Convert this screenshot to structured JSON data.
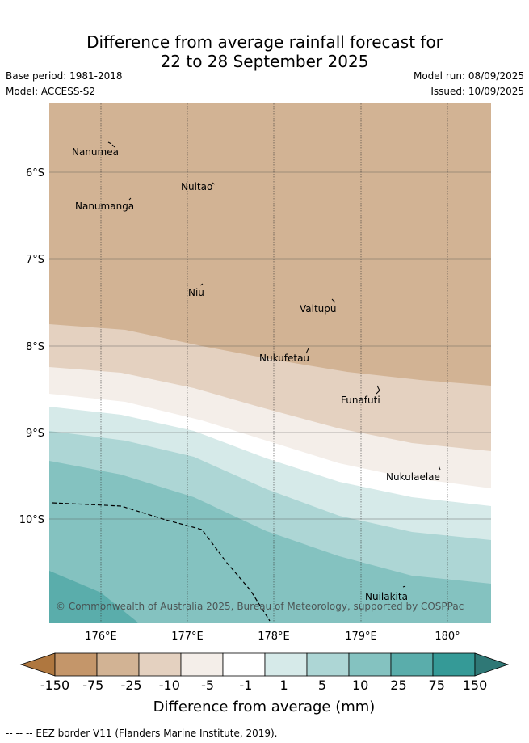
{
  "title_line1": "Difference from average rainfall forecast for",
  "title_line2": "22 to 28 September 2025",
  "base_period": "Base period: 1981-2018",
  "model": "Model: ACCESS-S2",
  "model_run": "Model run: 08/09/2025",
  "issued": "Issued: 10/09/2025",
  "copyright": "© Commonwealth of Australia 2025, Bureau of Meteorology, supported by COSPPac",
  "lat_labels": [
    "6°S",
    "7°S",
    "8°S",
    "9°S",
    "10°S"
  ],
  "lon_labels": [
    "176°E",
    "177°E",
    "178°E",
    "179°E",
    "180°"
  ],
  "places": [
    "Nanumea",
    "Nuitao",
    "Nanumanga",
    "Niu",
    "Vaitupu",
    "Nukufetau",
    "Funafuti",
    "Nukulaelae",
    "Nuilakita"
  ],
  "colorbar": {
    "title": "Difference from average (mm)",
    "ticks": [
      "-150",
      "-75",
      "-25",
      "-10",
      "-5",
      "-1",
      "1",
      "5",
      "10",
      "25",
      "75",
      "150"
    ],
    "colors": [
      "#af773f",
      "#c4966a",
      "#d2b394",
      "#e4d1c0",
      "#f4eee9",
      "#ffffff",
      "#d6eae9",
      "#add6d5",
      "#84c2c0",
      "#5aadab",
      "#359a97",
      "#2f7876"
    ]
  },
  "footer": "--  --  -- EEZ border V11 (Flanders Marine Institute, 2019)."
}
